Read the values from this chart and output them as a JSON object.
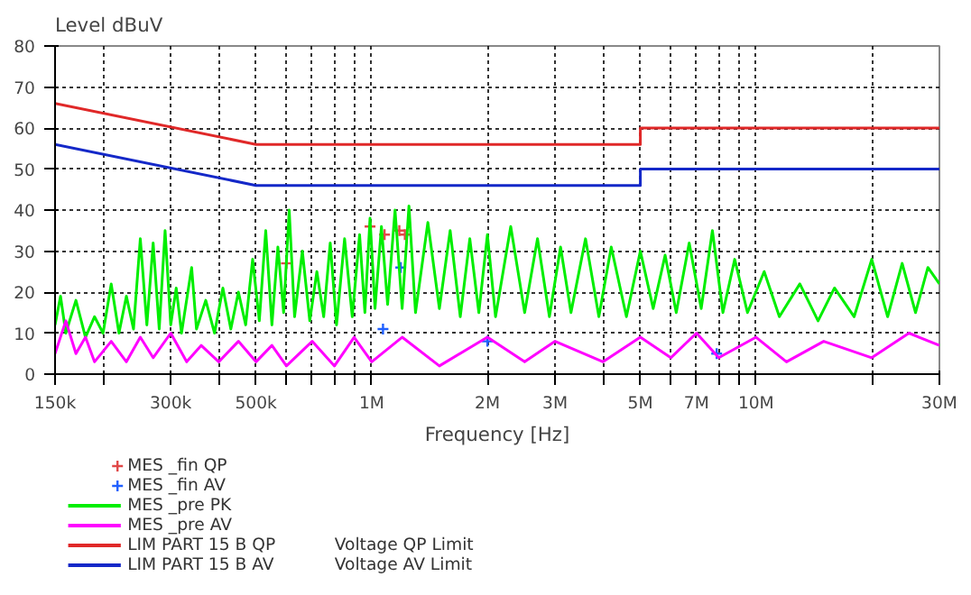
{
  "chart_data": {
    "type": "line",
    "ylabel": "Level  dBuV",
    "xlabel": "Frequency [Hz]",
    "log": "x",
    "grid": true,
    "legend": "bottom",
    "xlim": [
      150000,
      30000000
    ],
    "ylim": [
      0,
      80
    ],
    "xticks": [
      {
        "value": 150000,
        "label": "150k"
      },
      {
        "value": 200000,
        "label": null
      },
      {
        "value": 300000,
        "label": "300k"
      },
      {
        "value": 400000,
        "label": null
      },
      {
        "value": 500000,
        "label": "500k"
      },
      {
        "value": 600000,
        "label": null
      },
      {
        "value": 700000,
        "label": null
      },
      {
        "value": 800000,
        "label": null
      },
      {
        "value": 900000,
        "label": null
      },
      {
        "value": 1000000,
        "label": "1M"
      },
      {
        "value": 2000000,
        "label": "2M"
      },
      {
        "value": 3000000,
        "label": "3M"
      },
      {
        "value": 4000000,
        "label": null
      },
      {
        "value": 5000000,
        "label": "5M"
      },
      {
        "value": 6000000,
        "label": null
      },
      {
        "value": 7000000,
        "label": "7M"
      },
      {
        "value": 8000000,
        "label": null
      },
      {
        "value": 9000000,
        "label": null
      },
      {
        "value": 10000000,
        "label": "10M"
      },
      {
        "value": 20000000,
        "label": null
      },
      {
        "value": 30000000,
        "label": "30M"
      }
    ],
    "yticks": [
      0,
      10,
      20,
      30,
      40,
      50,
      60,
      70,
      80
    ],
    "annotations": [
      "Voltage QP Limit",
      "Voltage AV Limit"
    ],
    "series": [
      {
        "name": "MES _fin QP",
        "type": "scatter",
        "marker": "cross",
        "color": "#e04848",
        "x": [
          600000,
          990000,
          1080000,
          1180000,
          1220000
        ],
        "values": [
          27,
          36,
          34,
          35,
          34
        ]
      },
      {
        "name": "MES _fin AV",
        "type": "scatter",
        "marker": "cross",
        "color": "#2060ff",
        "x": [
          1070000,
          1190000,
          2000000,
          7900000
        ],
        "values": [
          11,
          26,
          8,
          5
        ]
      },
      {
        "name": "MES _pre PK",
        "color": "#00ee00",
        "x": [
          150000,
          155000,
          160000,
          170000,
          180000,
          190000,
          200000,
          210000,
          220000,
          230000,
          240000,
          250000,
          260000,
          270000,
          280000,
          290000,
          300000,
          310000,
          320000,
          340000,
          350000,
          370000,
          390000,
          410000,
          430000,
          450000,
          470000,
          490000,
          510000,
          530000,
          550000,
          570000,
          590000,
          610000,
          630000,
          660000,
          690000,
          720000,
          750000,
          780000,
          810000,
          850000,
          890000,
          930000,
          960000,
          990000,
          1020000,
          1060000,
          1100000,
          1150000,
          1200000,
          1250000,
          1300000,
          1400000,
          1500000,
          1600000,
          1700000,
          1800000,
          1900000,
          2000000,
          2100000,
          2300000,
          2500000,
          2700000,
          2900000,
          3100000,
          3300000,
          3600000,
          3900000,
          4200000,
          4600000,
          5000000,
          5400000,
          5800000,
          6200000,
          6700000,
          7200000,
          7700000,
          8200000,
          8800000,
          9500000,
          10500000,
          11500000,
          13000000,
          14500000,
          16000000,
          18000000,
          20000000,
          22000000,
          24000000,
          26000000,
          28000000,
          30000000
        ],
        "values": [
          12,
          19,
          10,
          18,
          9,
          14,
          10,
          22,
          10,
          19,
          11,
          33,
          12,
          32,
          11,
          35,
          12,
          21,
          10,
          26,
          11,
          18,
          10,
          21,
          11,
          20,
          12,
          28,
          13,
          35,
          12,
          31,
          15,
          40,
          14,
          30,
          13,
          25,
          14,
          32,
          12,
          33,
          14,
          34,
          15,
          38,
          16,
          36,
          17,
          40,
          16,
          41,
          15,
          37,
          16,
          35,
          14,
          33,
          15,
          34,
          14,
          36,
          15,
          33,
          14,
          31,
          15,
          33,
          14,
          31,
          14,
          30,
          16,
          29,
          15,
          32,
          16,
          35,
          15,
          28,
          15,
          25,
          14,
          22,
          13,
          21,
          14,
          28,
          14,
          27,
          15,
          26,
          22
        ]
      },
      {
        "name": "MES _pre AV",
        "color": "#ff00ff",
        "x": [
          150000,
          160000,
          170000,
          180000,
          190000,
          210000,
          230000,
          250000,
          270000,
          300000,
          330000,
          360000,
          400000,
          450000,
          500000,
          550000,
          600000,
          700000,
          800000,
          900000,
          1000000,
          1200000,
          1500000,
          2000000,
          2500000,
          3000000,
          4000000,
          5000000,
          6000000,
          7000000,
          8000000,
          10000000,
          12000000,
          15000000,
          20000000,
          25000000,
          30000000
        ],
        "values": [
          5,
          13,
          5,
          9,
          3,
          8,
          3,
          9,
          4,
          10,
          3,
          7,
          3,
          8,
          3,
          7,
          2,
          8,
          2,
          9,
          3,
          9,
          2,
          9,
          3,
          8,
          3,
          9,
          4,
          10,
          4,
          9,
          3,
          8,
          4,
          10,
          7
        ]
      },
      {
        "name": "LIM PART 15 B QP",
        "color": "#e02828",
        "x": [
          150000,
          500000,
          5000000,
          5000000,
          30000000
        ],
        "values": [
          66,
          56,
          56,
          60,
          60
        ]
      },
      {
        "name": "LIM PART 15 B AV",
        "color": "#1428c8",
        "x": [
          150000,
          500000,
          5000000,
          5000000,
          30000000
        ],
        "values": [
          56,
          46,
          46,
          50,
          50
        ]
      }
    ]
  }
}
